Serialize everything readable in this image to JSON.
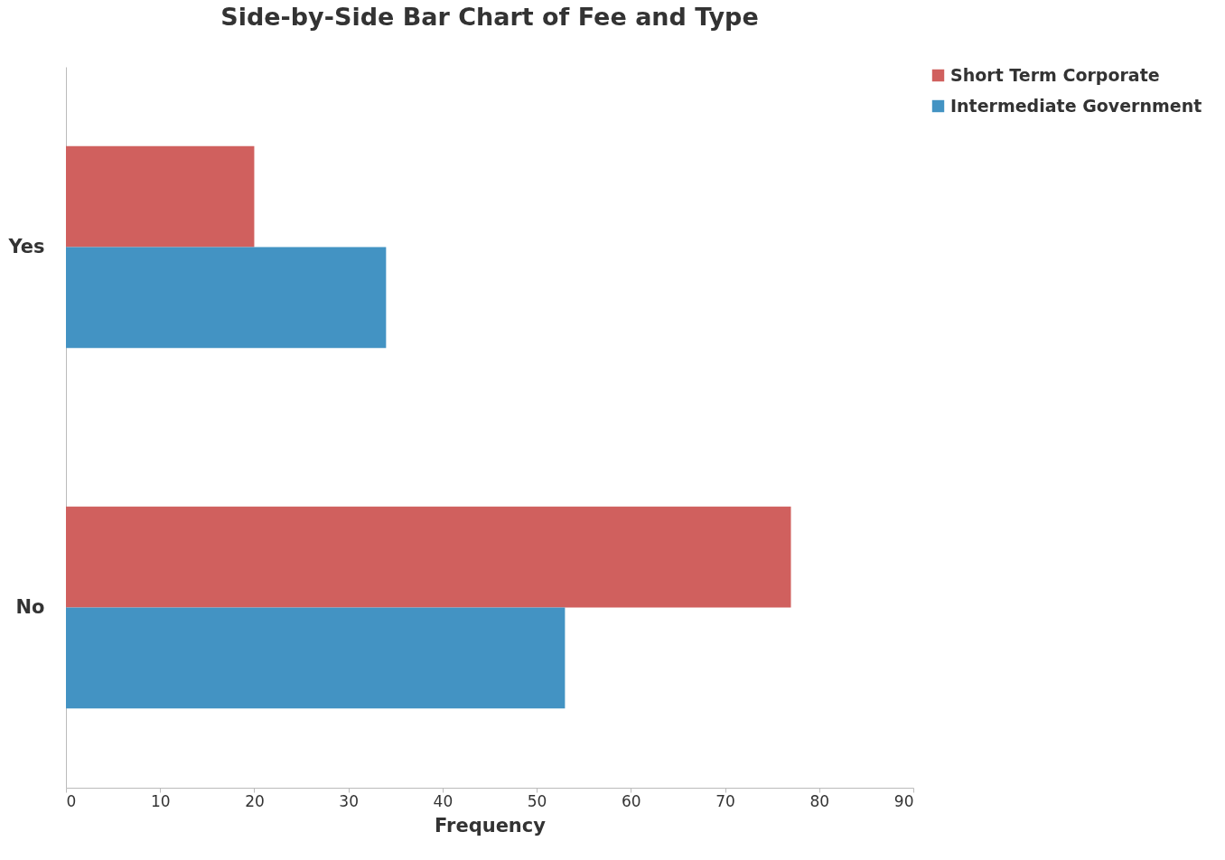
{
  "chart_data": {
    "type": "bar",
    "orientation": "horizontal",
    "title": "Side-by-Side Bar Chart of Fee and Type",
    "xlabel": "Frequency",
    "categories": [
      "Yes",
      "No"
    ],
    "series": [
      {
        "name": "Short Term Corporate",
        "color": "#d0605e",
        "values": [
          20,
          77
        ]
      },
      {
        "name": "Intermediate Government",
        "color": "#4393c3",
        "values": [
          34,
          53
        ]
      }
    ],
    "xlim": [
      0,
      90
    ],
    "xticks": [
      0,
      10,
      20,
      30,
      40,
      50,
      60,
      70,
      80,
      90
    ],
    "grid": false,
    "legend": "right"
  }
}
